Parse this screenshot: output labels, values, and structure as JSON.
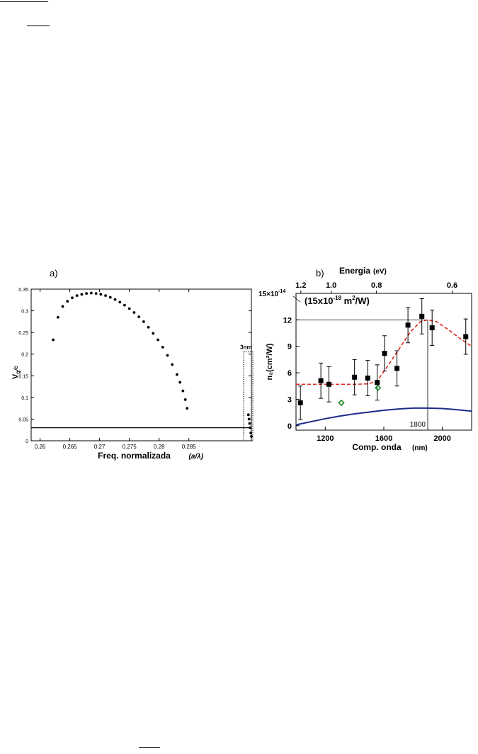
{
  "page": {
    "margin_rules": true
  },
  "chart_data": [
    {
      "panel_label": "a)",
      "type": "scatter",
      "xlabel": "Freq. normalizada",
      "xlabel_unit": "(a/λ)",
      "ylabel_main": "V",
      "ylabel_sub": "g",
      "ylabel_tail": "/c",
      "xlim": [
        0.2585,
        0.2955
      ],
      "ylim": [
        0,
        0.35
      ],
      "xticks": [
        "0.26",
        "0.265",
        "0.27",
        "0.275",
        "0.28",
        "0.285"
      ],
      "xtick_values": [
        0.26,
        0.265,
        0.27,
        0.275,
        0.28,
        0.285
      ],
      "yticks": [
        "0",
        "0.05",
        "0.1",
        "0.15",
        "0.2",
        "0.25",
        "0.3",
        "0.35"
      ],
      "ytick_values": [
        0,
        0.05,
        0.1,
        0.15,
        0.2,
        0.25,
        0.3,
        0.35
      ],
      "hline": 0.03,
      "annotation": "3nm",
      "band_range": [
        0.2942,
        0.2955
      ],
      "band_top": 0.205,
      "points": [
        [
          0.2622,
          0.233
        ],
        [
          0.263,
          0.285
        ],
        [
          0.2638,
          0.31
        ],
        [
          0.2646,
          0.322
        ],
        [
          0.2654,
          0.33
        ],
        [
          0.2662,
          0.335
        ],
        [
          0.267,
          0.338
        ],
        [
          0.2678,
          0.34
        ],
        [
          0.2686,
          0.341
        ],
        [
          0.2694,
          0.34
        ],
        [
          0.2702,
          0.338
        ],
        [
          0.271,
          0.335
        ],
        [
          0.2718,
          0.331
        ],
        [
          0.2726,
          0.326
        ],
        [
          0.2734,
          0.32
        ],
        [
          0.2742,
          0.313
        ],
        [
          0.275,
          0.305
        ],
        [
          0.2758,
          0.296
        ],
        [
          0.2766,
          0.286
        ],
        [
          0.2774,
          0.275
        ],
        [
          0.2782,
          0.262
        ],
        [
          0.279,
          0.248
        ],
        [
          0.2798,
          0.233
        ],
        [
          0.2806,
          0.216
        ],
        [
          0.2814,
          0.197
        ],
        [
          0.2822,
          0.176
        ],
        [
          0.283,
          0.153
        ],
        [
          0.2835,
          0.135
        ],
        [
          0.284,
          0.115
        ],
        [
          0.2844,
          0.095
        ],
        [
          0.2847,
          0.075
        ],
        [
          0.295,
          0.06
        ],
        [
          0.2951,
          0.05
        ],
        [
          0.2952,
          0.04
        ],
        [
          0.2953,
          0.03
        ],
        [
          0.2954,
          0.018
        ],
        [
          0.2955,
          0.01
        ]
      ]
    },
    {
      "panel_label": "b)",
      "type": "scatter",
      "top_axis_title": "Energia",
      "top_axis_unit": "(eV)",
      "top_ticks": [
        "1.2",
        "1.0",
        "0.8",
        "0.6"
      ],
      "top_tick_wavelengths": [
        1033,
        1240,
        1550,
        2067
      ],
      "xlabel": "Comp. onda",
      "xlabel_unit": "(nm)",
      "ylabel": "n₂(cm²/W)",
      "xlim": [
        1000,
        2200
      ],
      "ylim": [
        -0.5,
        15
      ],
      "xticks": [
        "1200",
        "1600",
        "2000"
      ],
      "xtick_values": [
        1200,
        1600,
        2000
      ],
      "yticks": [
        "0",
        "3",
        "6",
        "9",
        "12"
      ],
      "ytick_values": [
        0,
        3,
        6,
        9,
        12
      ],
      "top_left_label": "15×10",
      "top_left_exp": "-14",
      "inset_label": "(15x10",
      "inset_exp": "-18",
      "inset_tail": " m",
      "inset_tail_exp": "2",
      "inset_tail_end": "/W)",
      "reference_line": {
        "y": 12,
        "x_end": 1900
      },
      "vline_label": "1800",
      "data_points": [
        {
          "x": 1030,
          "y": 2.6,
          "err": 1.9
        },
        {
          "x": 1170,
          "y": 5.1,
          "err": 2.0
        },
        {
          "x": 1225,
          "y": 4.7,
          "err": 2.0
        },
        {
          "x": 1400,
          "y": 5.5,
          "err": 2.0
        },
        {
          "x": 1490,
          "y": 5.4,
          "err": 2.0
        },
        {
          "x": 1555,
          "y": 4.9,
          "err": 2.0
        },
        {
          "x": 1605,
          "y": 8.2,
          "err": 2.0
        },
        {
          "x": 1690,
          "y": 6.5,
          "err": 2.0
        },
        {
          "x": 1765,
          "y": 11.4,
          "err": 2.0
        },
        {
          "x": 1860,
          "y": 12.4,
          "err": 2.0
        },
        {
          "x": 1930,
          "y": 11.1,
          "err": 2.0
        },
        {
          "x": 2160,
          "y": 10.1,
          "err": 2.0
        }
      ],
      "diamonds": [
        {
          "x": 1310,
          "y": 2.6
        },
        {
          "x": 1560,
          "y": 4.3
        }
      ],
      "dashed_fit": [
        [
          1000,
          4.7
        ],
        [
          1200,
          4.7
        ],
        [
          1400,
          4.7
        ],
        [
          1500,
          4.75
        ],
        [
          1560,
          5.2
        ],
        [
          1620,
          6.6
        ],
        [
          1700,
          8.6
        ],
        [
          1780,
          10.6
        ],
        [
          1850,
          11.8
        ],
        [
          1900,
          12.0
        ],
        [
          1960,
          11.8
        ],
        [
          2040,
          10.9
        ],
        [
          2120,
          9.9
        ],
        [
          2200,
          9.0
        ]
      ],
      "blue_curve": [
        [
          1000,
          0.1
        ],
        [
          1100,
          0.45
        ],
        [
          1200,
          0.8
        ],
        [
          1300,
          1.1
        ],
        [
          1400,
          1.35
        ],
        [
          1500,
          1.55
        ],
        [
          1600,
          1.75
        ],
        [
          1700,
          1.9
        ],
        [
          1800,
          2.0
        ],
        [
          1900,
          2.0
        ],
        [
          2000,
          1.95
        ],
        [
          2100,
          1.82
        ],
        [
          2200,
          1.65
        ]
      ],
      "colors": {
        "fit": "#d9281f",
        "curve": "#1c2b8c",
        "diamond": "#1f8a2b",
        "square": "#000000"
      }
    }
  ]
}
